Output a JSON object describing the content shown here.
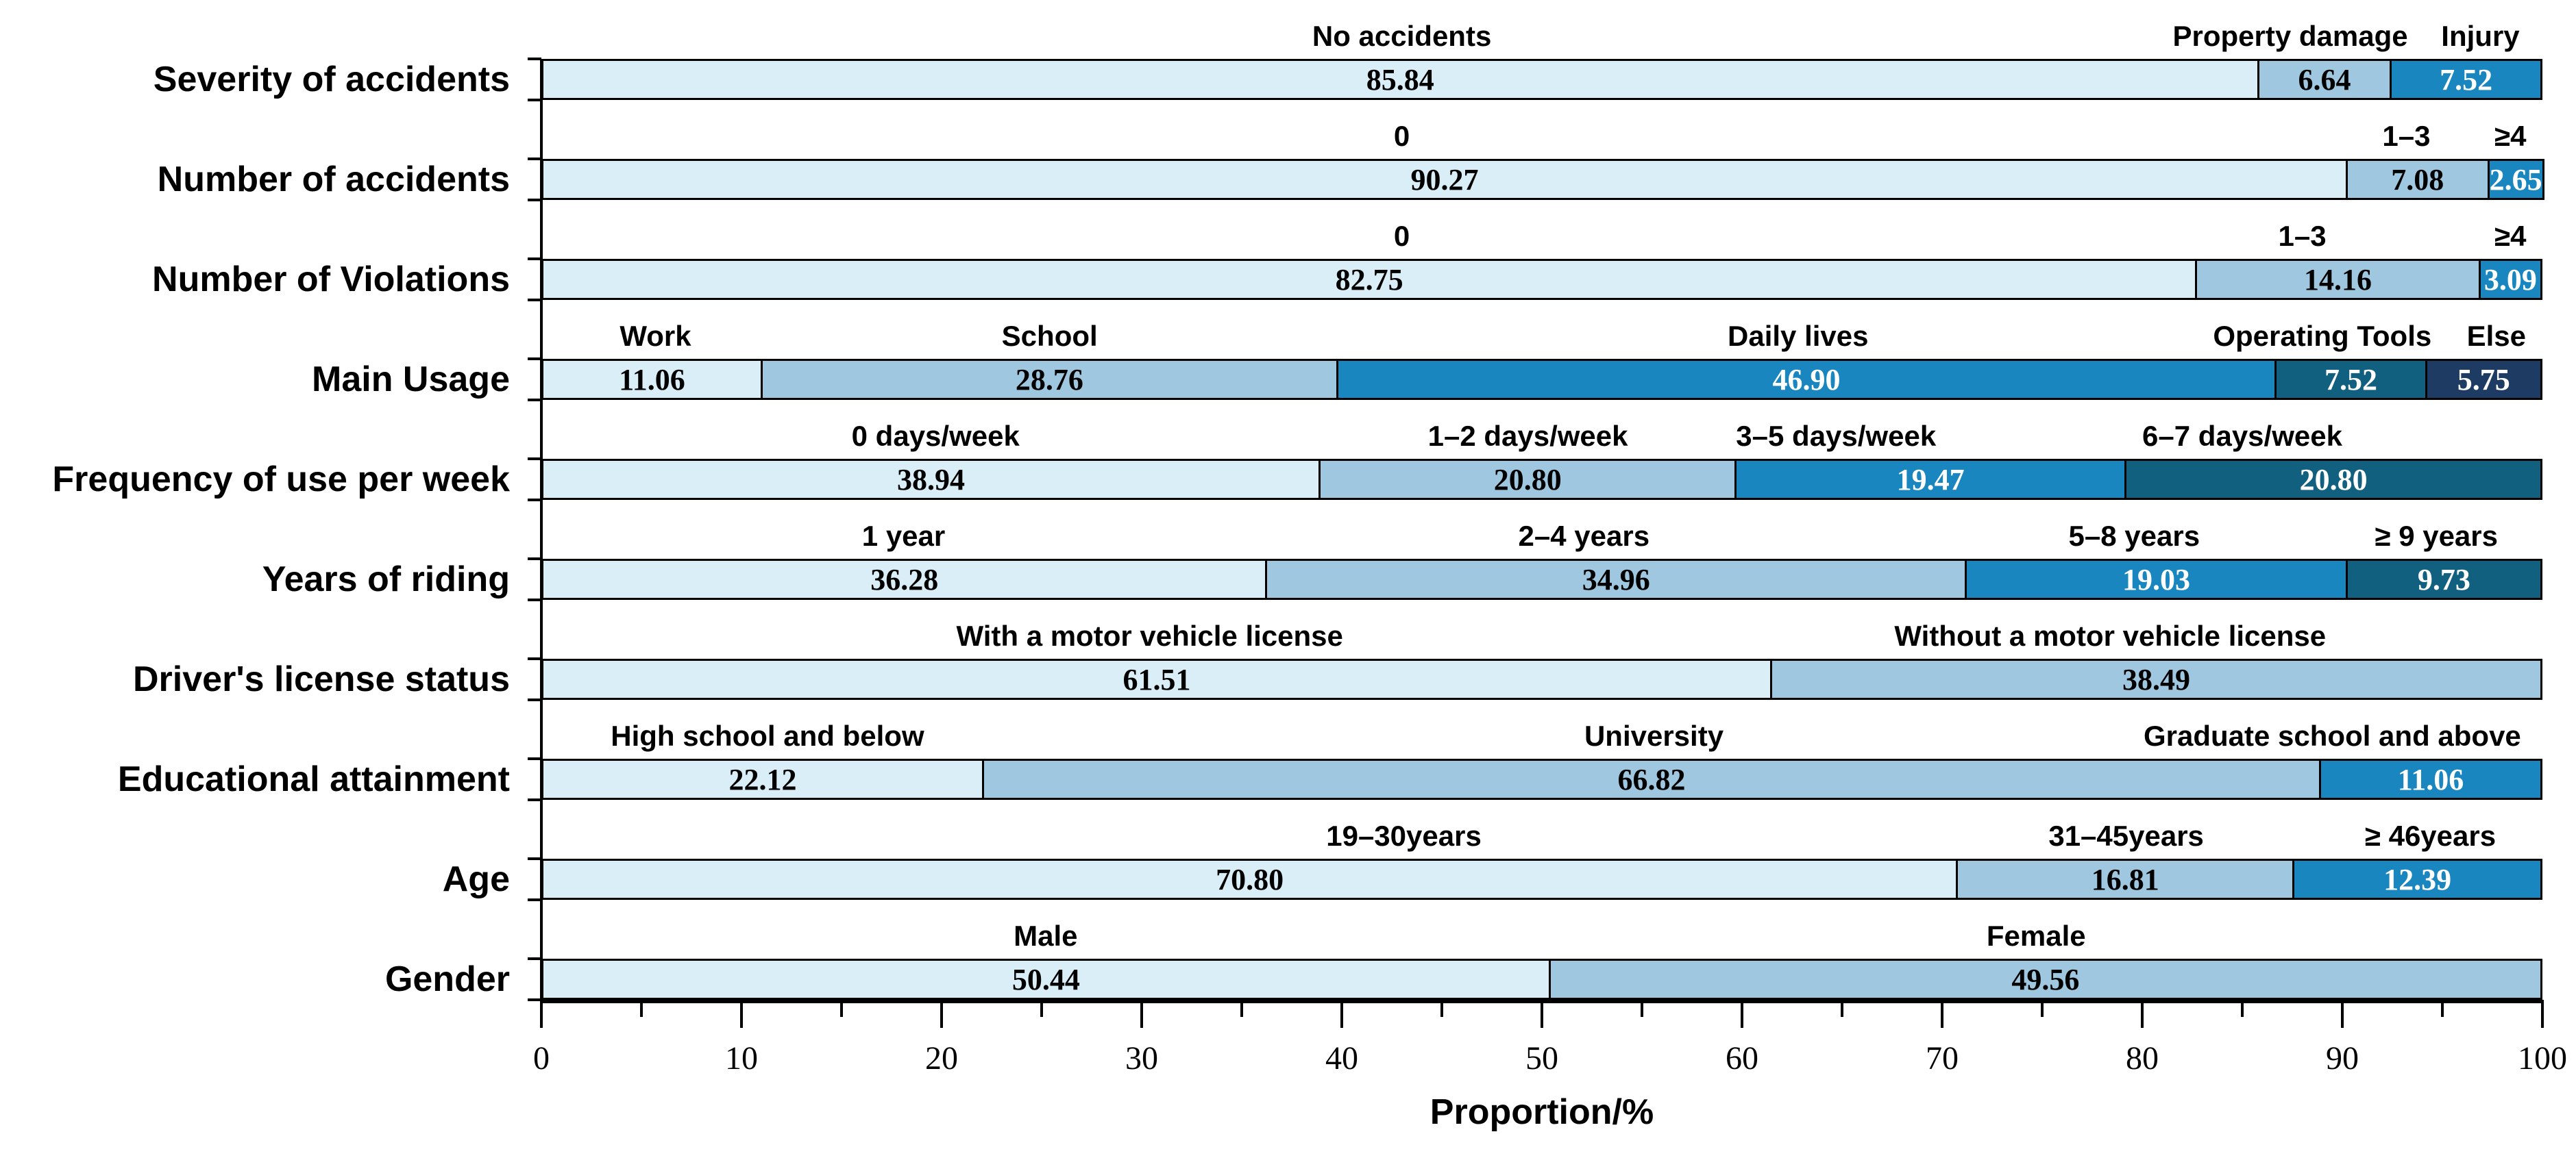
{
  "chart_data": {
    "type": "bar",
    "orientation": "horizontal",
    "stacked": true,
    "title": "",
    "xlabel": "Proportion/%",
    "ylabel": "",
    "xlim": [
      0,
      100
    ],
    "x_major_ticks": [
      0,
      10,
      20,
      30,
      40,
      50,
      60,
      70,
      80,
      90,
      100
    ],
    "x_minor_ticks": [
      5,
      15,
      25,
      35,
      45,
      55,
      65,
      75,
      85,
      95
    ],
    "grid": false,
    "legend": "none (categories labeled above each bar)",
    "palette": [
      "#d9eef6",
      "#9fc8e0",
      "#1a86c0",
      "#12607f",
      "#1e3c63"
    ],
    "segment_text_colors": [
      "#000000",
      "#000000",
      "#ffffff",
      "#ffffff",
      "#ffffff"
    ],
    "rows": [
      {
        "label": "Severity of accidents",
        "segments": [
          {
            "category": "No accidents",
            "value": 85.84,
            "color_index": 0,
            "cat_pos": 43.0
          },
          {
            "category": "Property damage",
            "value": 6.64,
            "color_index": 1,
            "cat_pos": 87.4
          },
          {
            "category": "Injury",
            "value": 7.52,
            "color_index": 2,
            "cat_pos": 96.9
          }
        ]
      },
      {
        "label": "Number of accidents",
        "segments": [
          {
            "category": "0",
            "value": 90.27,
            "color_index": 0,
            "cat_pos": 43.0
          },
          {
            "category": "1–3",
            "value": 7.08,
            "color_index": 1,
            "cat_pos": 93.2
          },
          {
            "category": "≥4",
            "value": 2.65,
            "color_index": 2,
            "cat_pos": 98.4
          }
        ]
      },
      {
        "label": "Number of Violations",
        "segments": [
          {
            "category": "0",
            "value": 82.75,
            "color_index": 0,
            "cat_pos": 43.0
          },
          {
            "category": "1–3",
            "value": 14.16,
            "color_index": 1,
            "cat_pos": 88.0
          },
          {
            "category": "≥4",
            "value": 3.09,
            "color_index": 2,
            "cat_pos": 98.4
          }
        ]
      },
      {
        "label": "Main Usage",
        "segments": [
          {
            "category": "Work",
            "value": 11.06,
            "color_index": 0,
            "cat_pos": 5.7
          },
          {
            "category": "School",
            "value": 28.76,
            "color_index": 1,
            "cat_pos": 25.4
          },
          {
            "category": "Daily lives",
            "value": 46.9,
            "color_index": 2,
            "cat_pos": 62.8
          },
          {
            "category": "Operating Tools",
            "value": 7.52,
            "color_index": 3,
            "cat_pos": 89.0
          },
          {
            "category": "Else",
            "value": 5.75,
            "color_index": 4,
            "cat_pos": 97.7
          }
        ]
      },
      {
        "label": "Frequency of use per week",
        "segments": [
          {
            "category": "0 days/week",
            "value": 38.94,
            "color_index": 0,
            "cat_pos": 19.7
          },
          {
            "category": "1–2 days/week",
            "value": 20.8,
            "color_index": 1,
            "cat_pos": 49.3
          },
          {
            "category": "3–5 days/week",
            "value": 19.47,
            "color_index": 2,
            "cat_pos": 64.7
          },
          {
            "category": "6–7 days/week",
            "value": 20.8,
            "color_index": 3,
            "cat_pos": 85.0
          }
        ]
      },
      {
        "label": "Years of riding",
        "segments": [
          {
            "category": "1 year",
            "value": 36.28,
            "color_index": 0,
            "cat_pos": 18.1
          },
          {
            "category": "2–4 years",
            "value": 34.96,
            "color_index": 1,
            "cat_pos": 52.1
          },
          {
            "category": "5–8 years",
            "value": 19.03,
            "color_index": 2,
            "cat_pos": 79.6
          },
          {
            "category": "≥ 9 years",
            "value": 9.73,
            "color_index": 3,
            "cat_pos": 94.7
          }
        ]
      },
      {
        "label": "Driver's license status",
        "segments": [
          {
            "category": "With a motor vehicle license",
            "value": 61.51,
            "color_index": 0,
            "cat_pos": 30.4
          },
          {
            "category": "Without a motor vehicle license",
            "value": 38.49,
            "color_index": 1,
            "cat_pos": 78.4
          }
        ]
      },
      {
        "label": "Educational attainment",
        "segments": [
          {
            "category": "High school and below",
            "value": 22.12,
            "color_index": 0,
            "cat_pos": 11.3
          },
          {
            "category": "University",
            "value": 66.82,
            "color_index": 1,
            "cat_pos": 55.6
          },
          {
            "category": "Graduate school and above",
            "value": 11.06,
            "color_index": 2,
            "cat_pos": 89.5
          }
        ]
      },
      {
        "label": "Age",
        "segments": [
          {
            "category": "19–30years",
            "value": 70.8,
            "color_index": 0,
            "cat_pos": 43.1
          },
          {
            "category": "31–45years",
            "value": 16.81,
            "color_index": 1,
            "cat_pos": 79.2
          },
          {
            "category": "≥ 46years",
            "value": 12.39,
            "color_index": 2,
            "cat_pos": 94.4
          }
        ]
      },
      {
        "label": "Gender",
        "segments": [
          {
            "category": "Male",
            "value": 50.44,
            "color_index": 0,
            "cat_pos": 25.2
          },
          {
            "category": "Female",
            "value": 49.56,
            "color_index": 1,
            "cat_pos": 74.7
          }
        ]
      }
    ]
  }
}
